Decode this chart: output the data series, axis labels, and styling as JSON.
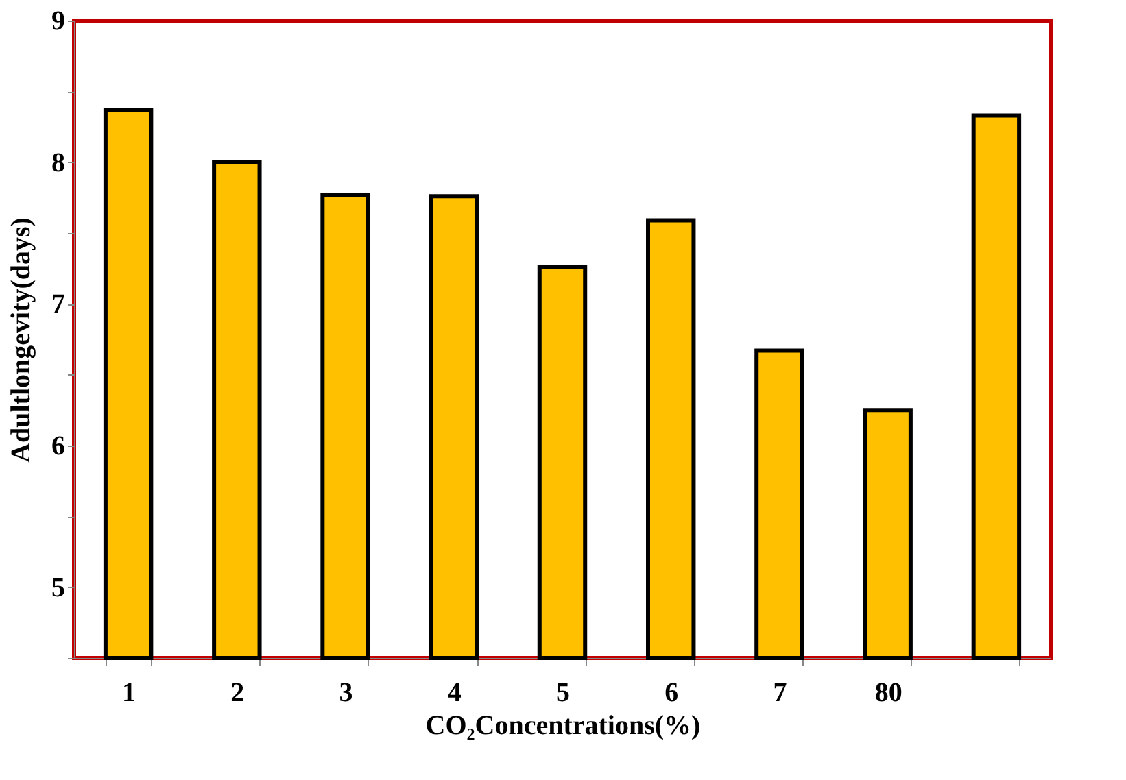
{
  "chart_data": {
    "type": "bar",
    "xlabel": "CO₂Concentrations(%)",
    "ylabel": "Adultlongevity(days)",
    "categories": [
      "1",
      "2",
      "3",
      "4",
      "5",
      "6",
      "7",
      "80",
      null
    ],
    "values": [
      8.37,
      8.0,
      7.77,
      7.76,
      7.26,
      7.59,
      6.67,
      6.25,
      8.33
    ],
    "color": "#ffc000",
    "ylim": [
      4.5,
      9
    ],
    "yticks": [
      {
        "value": 4.5,
        "label": null
      },
      5,
      {
        "value": 5.5,
        "label": null
      },
      6,
      {
        "value": 6.5,
        "label": null
      },
      7,
      {
        "value": 7.5,
        "label": null
      },
      8,
      {
        "value": 8.5,
        "label": null
      },
      9
    ],
    "grid": false
  }
}
